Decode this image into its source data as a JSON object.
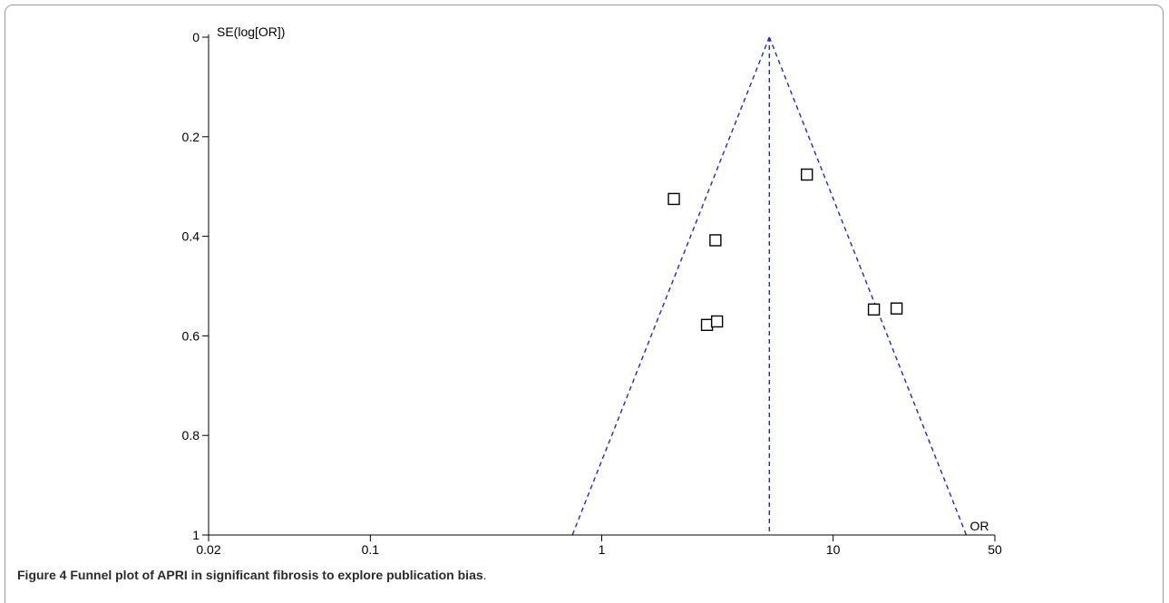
{
  "chart_data": {
    "type": "scatter",
    "title": "",
    "xlabel": "OR",
    "ylabel": "SE(log[OR])",
    "x_scale": "log",
    "xlim": [
      0.02,
      50
    ],
    "ylim": [
      0,
      1
    ],
    "y_inverted": true,
    "x_ticks": [
      0.02,
      0.1,
      1,
      10,
      50
    ],
    "x_tick_labels": [
      "0.02",
      "0.1",
      "1",
      "10",
      "50"
    ],
    "y_ticks": [
      0,
      0.2,
      0.4,
      0.6,
      0.8,
      1
    ],
    "y_tick_labels": [
      "0",
      "0.2",
      "0.4",
      "0.6",
      "0.8",
      "1"
    ],
    "points": [
      {
        "or": 2.05,
        "se": 0.325
      },
      {
        "or": 7.7,
        "se": 0.276
      },
      {
        "or": 3.1,
        "se": 0.408
      },
      {
        "or": 2.85,
        "se": 0.578
      },
      {
        "or": 3.15,
        "se": 0.571
      },
      {
        "or": 15.0,
        "se": 0.547
      },
      {
        "or": 18.8,
        "se": 0.545
      }
    ],
    "pooled_or": 5.3,
    "marker": "open-square",
    "guide_color": "#1f2bb8",
    "grid": false
  },
  "caption": {
    "label": "Figure 4",
    "text": "Funnel plot of APRI in significant fibrosis to explore publication bias",
    "end": "."
  }
}
